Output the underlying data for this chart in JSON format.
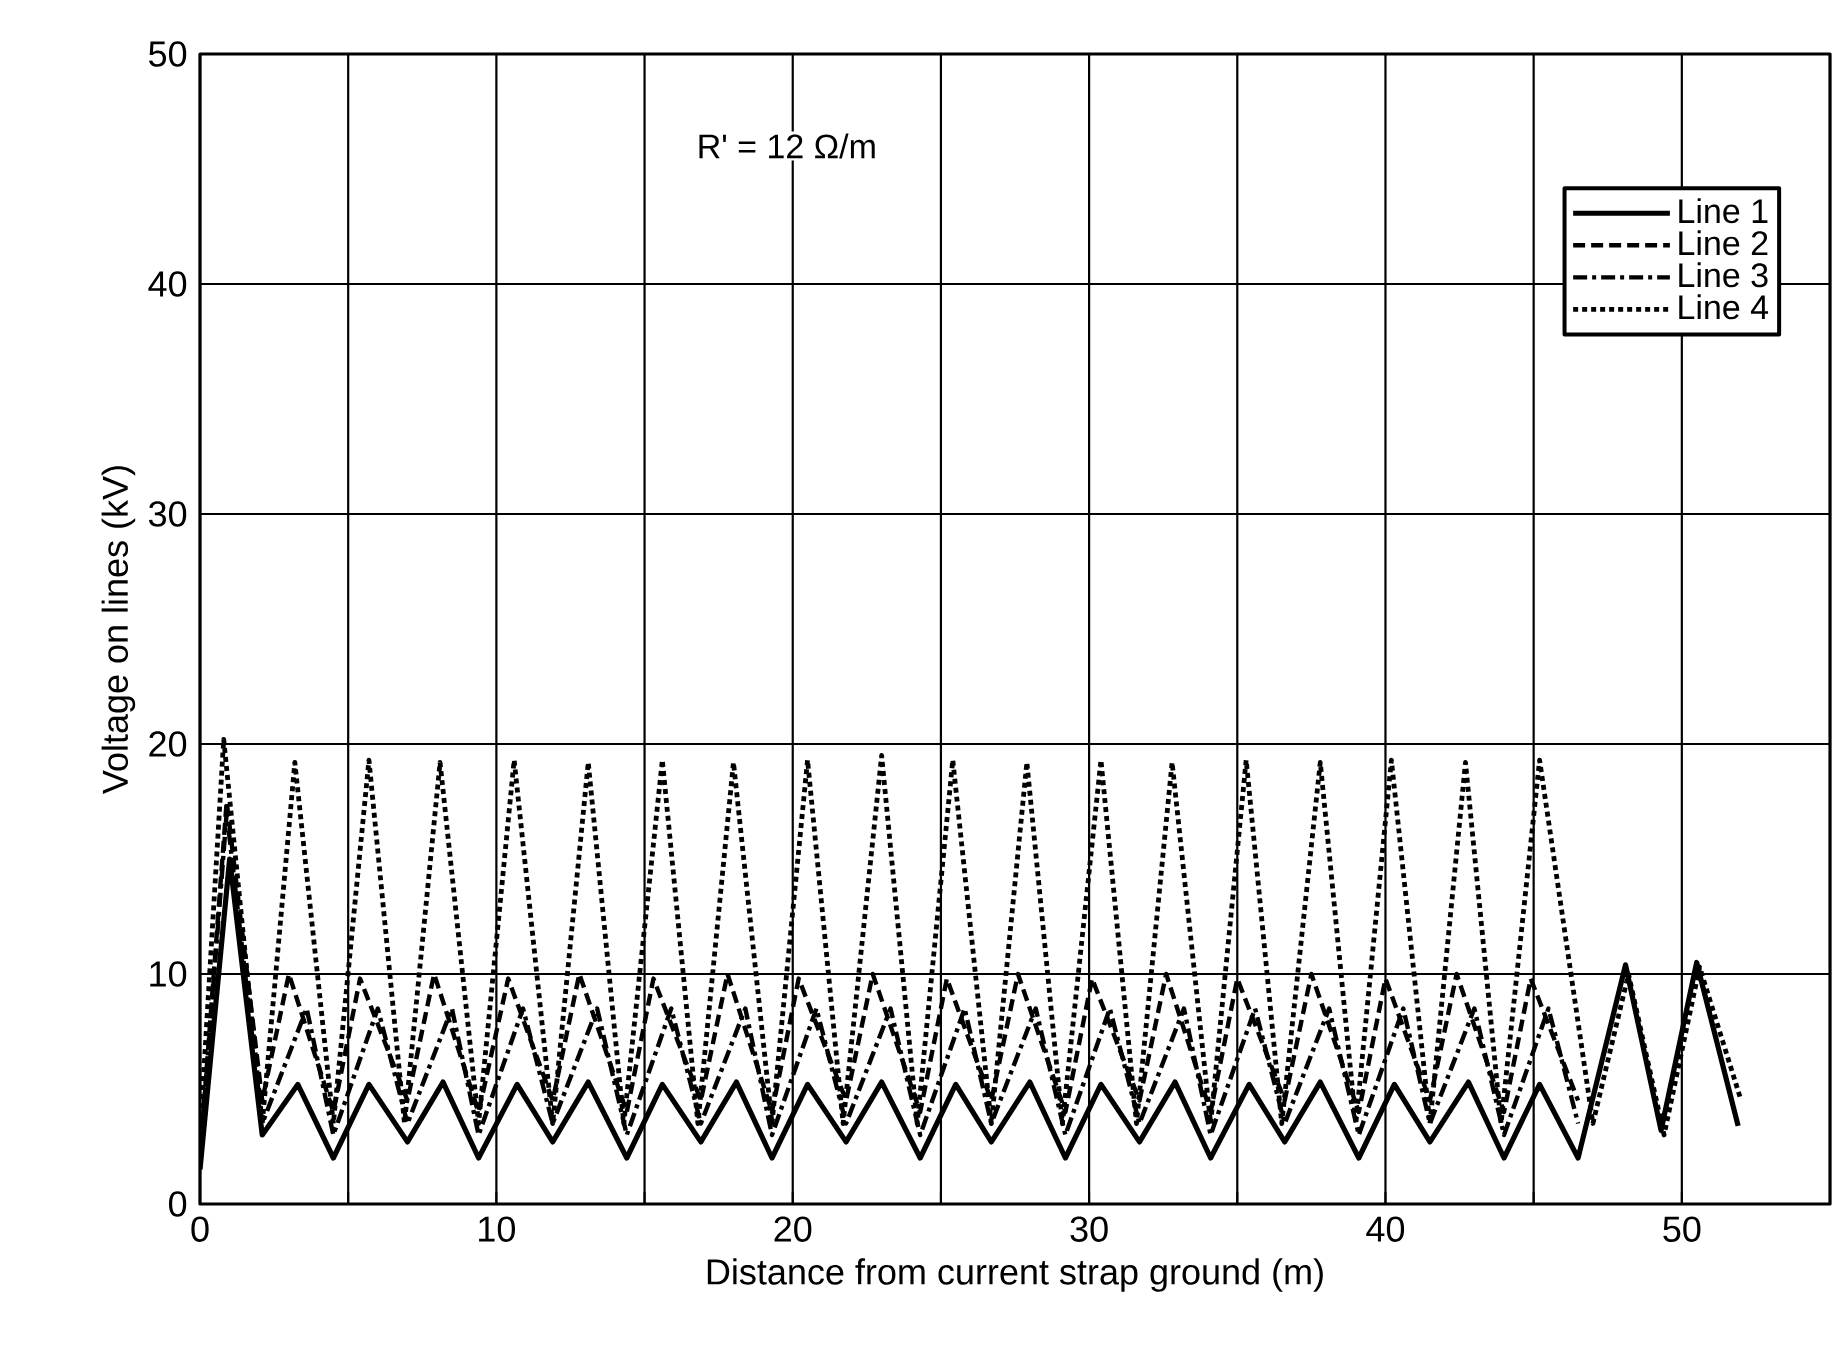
{
  "chart_data": {
    "type": "line",
    "xlabel": "Distance from current strap ground (m)",
    "ylabel": "Voltage on lines (kV)",
    "annotations": [
      "R' = 12 Ω/m"
    ],
    "xlim": [
      0,
      55
    ],
    "ylim": [
      0,
      50
    ],
    "xticks": [
      0,
      {
        "value": 5,
        "label": null
      },
      10,
      {
        "value": 15,
        "label": null
      },
      20,
      {
        "value": 25,
        "label": null
      },
      30,
      {
        "value": 35,
        "label": null
      },
      40,
      {
        "value": 45,
        "label": null
      },
      50
    ],
    "yticks": [
      0,
      10,
      20,
      30,
      40,
      50
    ],
    "grid": true,
    "legend": "top right",
    "marker": "none",
    "series": [
      {
        "name": "Line 1",
        "color": "#000000",
        "line_style": "solid",
        "x": [
          0,
          1.0,
          2.1,
          3.3,
          4.5,
          5.7,
          7.0,
          8.2,
          9.4,
          10.7,
          11.9,
          13.1,
          14.4,
          15.6,
          16.9,
          18.1,
          19.3,
          20.5,
          21.8,
          23.0,
          24.3,
          25.5,
          26.7,
          28.0,
          29.2,
          30.4,
          31.7,
          32.9,
          34.1,
          35.4,
          36.6,
          37.8,
          39.1,
          40.3,
          41.5,
          42.8,
          44.0,
          45.2,
          46.5,
          48.1,
          49.3,
          50.5,
          51.9
        ],
        "values": [
          1.5,
          15,
          3.0,
          5.2,
          2.0,
          5.2,
          2.7,
          5.3,
          2.0,
          5.2,
          2.7,
          5.3,
          2.0,
          5.2,
          2.7,
          5.3,
          2.0,
          5.2,
          2.7,
          5.3,
          2.0,
          5.2,
          2.7,
          5.3,
          2.0,
          5.2,
          2.7,
          5.3,
          2.0,
          5.2,
          2.7,
          5.3,
          2.0,
          5.2,
          2.7,
          5.3,
          2.0,
          5.2,
          2.0,
          10.4,
          3.2,
          10.5,
          3.4
        ]
      },
      {
        "name": "Line 2",
        "color": "#000000",
        "line_style": "dashed",
        "x": [
          0,
          0.9,
          2.1,
          3.0,
          4.5,
          5.4,
          7.0,
          7.9,
          9.4,
          10.4,
          11.9,
          12.8,
          14.4,
          15.3,
          16.9,
          17.8,
          19.3,
          20.2,
          21.8,
          22.7,
          24.3,
          25.2,
          26.7,
          27.6,
          29.2,
          30.1,
          31.7,
          32.6,
          34.1,
          35.0,
          36.6,
          37.5,
          39.1,
          40.0,
          41.5,
          42.4,
          44.0,
          44.9,
          46.5
        ],
        "values": [
          2,
          17.5,
          4.5,
          10,
          4,
          9.8,
          4.5,
          10,
          4,
          9.8,
          4.5,
          10,
          4,
          9.8,
          4.5,
          10,
          4,
          9.8,
          4.5,
          10,
          4,
          9.8,
          4.5,
          10,
          4,
          9.8,
          4.5,
          10,
          4,
          9.8,
          4.5,
          10,
          4,
          9.8,
          4.5,
          10,
          4,
          9.8,
          4.5
        ]
      },
      {
        "name": "Line 3",
        "color": "#000000",
        "line_style": "dashdot",
        "x": [
          0,
          0.9,
          2.1,
          3.6,
          4.5,
          6.0,
          7.0,
          8.5,
          9.4,
          10.9,
          11.9,
          13.4,
          14.4,
          15.9,
          16.9,
          18.4,
          19.3,
          20.8,
          21.8,
          23.3,
          24.3,
          25.8,
          26.7,
          28.2,
          29.2,
          30.7,
          31.7,
          33.2,
          34.1,
          35.6,
          36.6,
          38.1,
          39.1,
          40.6,
          41.5,
          43.0,
          44.0,
          45.5,
          46.5
        ],
        "values": [
          2,
          17,
          3.5,
          8.5,
          3,
          8.5,
          3.5,
          8.5,
          3,
          8.5,
          3.5,
          8.5,
          3,
          8.5,
          3.5,
          8.5,
          3,
          8.5,
          3.5,
          8.5,
          3,
          8.5,
          3.5,
          8.5,
          3,
          8.5,
          3.5,
          8.5,
          3,
          8.5,
          3.5,
          8.5,
          3,
          8.5,
          3.5,
          8.5,
          3,
          8.5,
          3.5
        ]
      },
      {
        "name": "Line 4",
        "color": "#000000",
        "line_style": "dotted",
        "x": [
          0,
          0.8,
          2.1,
          3.2,
          4.5,
          5.7,
          6.9,
          8.1,
          9.4,
          10.6,
          11.9,
          13.1,
          14.3,
          15.6,
          16.8,
          18.0,
          19.3,
          20.5,
          21.7,
          23.0,
          24.2,
          25.4,
          26.7,
          27.9,
          29.1,
          30.4,
          31.6,
          32.8,
          34.1,
          35.3,
          36.5,
          37.8,
          39.0,
          40.2,
          41.5,
          42.7,
          43.9,
          45.2,
          47.0,
          48.2,
          49.4,
          50.6,
          52.0
        ],
        "values": [
          3,
          20.2,
          3.5,
          19.2,
          3.5,
          19.3,
          3.5,
          19.2,
          3.5,
          19.3,
          3.5,
          19.2,
          3.5,
          19.3,
          3.5,
          19.2,
          3.5,
          19.3,
          3.5,
          19.5,
          3.5,
          19.3,
          3.5,
          19.2,
          3.5,
          19.3,
          3.5,
          19.2,
          3.5,
          19.3,
          3.5,
          19.2,
          3.5,
          19.3,
          3.5,
          19.2,
          3.5,
          19.3,
          3.5,
          10,
          3.0,
          10.3,
          4.5
        ]
      }
    ]
  }
}
